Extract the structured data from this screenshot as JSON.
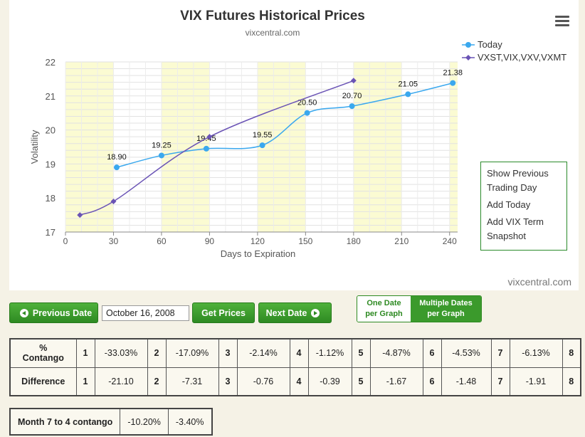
{
  "chart": {
    "title": "VIX Futures Historical Prices",
    "subtitle": "vixcentral.com",
    "credit": "vixcentral.com",
    "menu_icon": "hamburger-icon"
  },
  "legend": [
    {
      "label": "Today",
      "color": "#3aa8ee",
      "marker": "circle"
    },
    {
      "label": "VXST,VIX,VXV,VXMT",
      "color": "#6a53b5",
      "marker": "diamond"
    }
  ],
  "context_menu": {
    "items": [
      "Show Previous Trading Day",
      "Add Today",
      "Add VIX Term Snapshot"
    ]
  },
  "chart_data": {
    "type": "line",
    "xlabel": "Days to Expiration",
    "ylabel": "Volatility",
    "xlim": [
      0,
      245
    ],
    "ylim": [
      17,
      22
    ],
    "x_ticks": [
      0,
      30,
      60,
      90,
      120,
      150,
      180,
      210,
      240
    ],
    "y_ticks": [
      17,
      18,
      19,
      20,
      21,
      22
    ],
    "grid": true,
    "legend_position": "top-right",
    "shaded_bands": [
      [
        0,
        30
      ],
      [
        60,
        90
      ],
      [
        120,
        150
      ],
      [
        180,
        210
      ],
      [
        240,
        245
      ]
    ],
    "series": [
      {
        "name": "Today",
        "color": "#3aa8ee",
        "marker": "circle",
        "x": [
          32,
          60,
          88,
          123,
          151,
          179,
          214,
          242
        ],
        "y": [
          18.9,
          19.25,
          19.45,
          19.55,
          20.5,
          20.7,
          21.05,
          21.38
        ],
        "labels": [
          "18.90",
          "19.25",
          "19.45",
          "19.55",
          "20.50",
          "20.70",
          "21.05",
          "21.38"
        ]
      },
      {
        "name": "VXST,VIX,VXV,VXMT",
        "color": "#6a53b5",
        "marker": "diamond",
        "x": [
          9,
          30,
          90,
          180
        ],
        "y": [
          17.5,
          17.9,
          19.8,
          21.45
        ]
      }
    ]
  },
  "controls": {
    "prev_label": "Previous Date",
    "date_value": "October 16, 2008",
    "get_prices_label": "Get Prices",
    "next_label": "Next Date",
    "toggle_one_line1": "One Date",
    "toggle_one_line2": "per Graph",
    "toggle_multi_line1": "Multiple Dates",
    "toggle_multi_line2": "per Graph"
  },
  "stats": {
    "contango_label_line1": "%",
    "contango_label_line2": "Contango",
    "difference_label": "Difference",
    "contango": [
      {
        "n": "1",
        "v": "-33.03%"
      },
      {
        "n": "2",
        "v": "-17.09%"
      },
      {
        "n": "3",
        "v": "-2.14%"
      },
      {
        "n": "4",
        "v": "-1.12%"
      },
      {
        "n": "5",
        "v": "-4.87%"
      },
      {
        "n": "6",
        "v": "-4.53%"
      },
      {
        "n": "7",
        "v": "-6.13%"
      }
    ],
    "contango_last_n": "8",
    "difference": [
      {
        "n": "1",
        "v": "-21.10"
      },
      {
        "n": "2",
        "v": "-7.31"
      },
      {
        "n": "3",
        "v": "-0.76"
      },
      {
        "n": "4",
        "v": "-0.39"
      },
      {
        "n": "5",
        "v": "-1.67"
      },
      {
        "n": "6",
        "v": "-1.48"
      },
      {
        "n": "7",
        "v": "-1.91"
      }
    ],
    "difference_last_n": "8"
  },
  "month_contango": {
    "label": "Month 7 to 4 contango",
    "v1": "-10.20%",
    "v2": "-3.40%"
  }
}
